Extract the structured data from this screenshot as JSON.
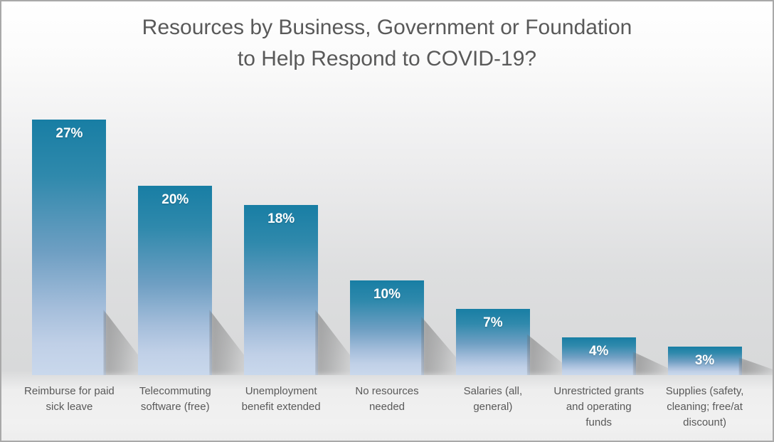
{
  "window": {
    "border_color": "#a9a9a9",
    "background_top": "#ffffff",
    "background_mid": "#d9dadb",
    "background_bottom": "#f0f0f0"
  },
  "title": {
    "line1": "Resources by Business, Government or Foundation",
    "line2": "to Help Respond to COVID-19?",
    "color": "#595959"
  },
  "chart_data": {
    "type": "bar",
    "title": "Resources by Business, Government or Foundation to Help Respond to COVID-19?",
    "categories": [
      "Reimburse for paid sick leave",
      "Telecommuting software (free)",
      "Unemployment benefit extended",
      "No resources needed",
      "Salaries (all, general)",
      "Unrestricted grants and operating funds",
      "Supplies (safety, cleaning; free/at discount)"
    ],
    "values": [
      27,
      20,
      18,
      10,
      7,
      4,
      3
    ],
    "value_labels": [
      "27%",
      "20%",
      "18%",
      "10%",
      "7%",
      "4%",
      "3%"
    ],
    "xlabel": "",
    "ylabel": "",
    "ylim": [
      0,
      27
    ],
    "grid": false,
    "legend": "none",
    "axes_visible": false,
    "bar_color_top": "#187ea4",
    "bar_color_bottom": "#c9d8ec",
    "value_label_color": "#ffffff",
    "category_label_color": "#595959"
  }
}
